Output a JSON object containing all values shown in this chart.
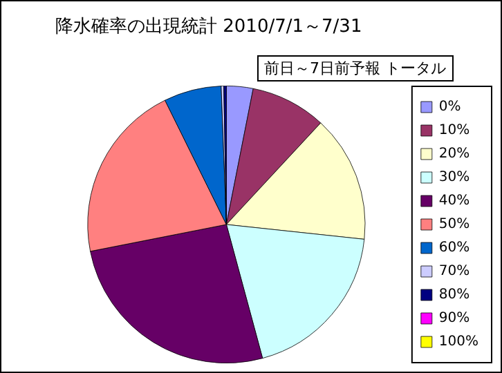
{
  "chart_data": {
    "type": "pie",
    "title": "降水確率の出現統計 2010/7/1～7/31",
    "subtitle": "前日～7日前予報 トータル",
    "categories": [
      "0%",
      "10%",
      "20%",
      "30%",
      "40%",
      "50%",
      "60%",
      "70%",
      "80%",
      "90%",
      "100%"
    ],
    "values": [
      3.1,
      8.8,
      14.8,
      19.1,
      26.1,
      20.8,
      6.7,
      0.3,
      0.3,
      0,
      0
    ],
    "colors": [
      "#9999ff",
      "#993366",
      "#ffffcc",
      "#ccffff",
      "#660066",
      "#ff8080",
      "#0066cc",
      "#ccccff",
      "#000080",
      "#ff00ff",
      "#ffff00"
    ],
    "legend": "right"
  }
}
